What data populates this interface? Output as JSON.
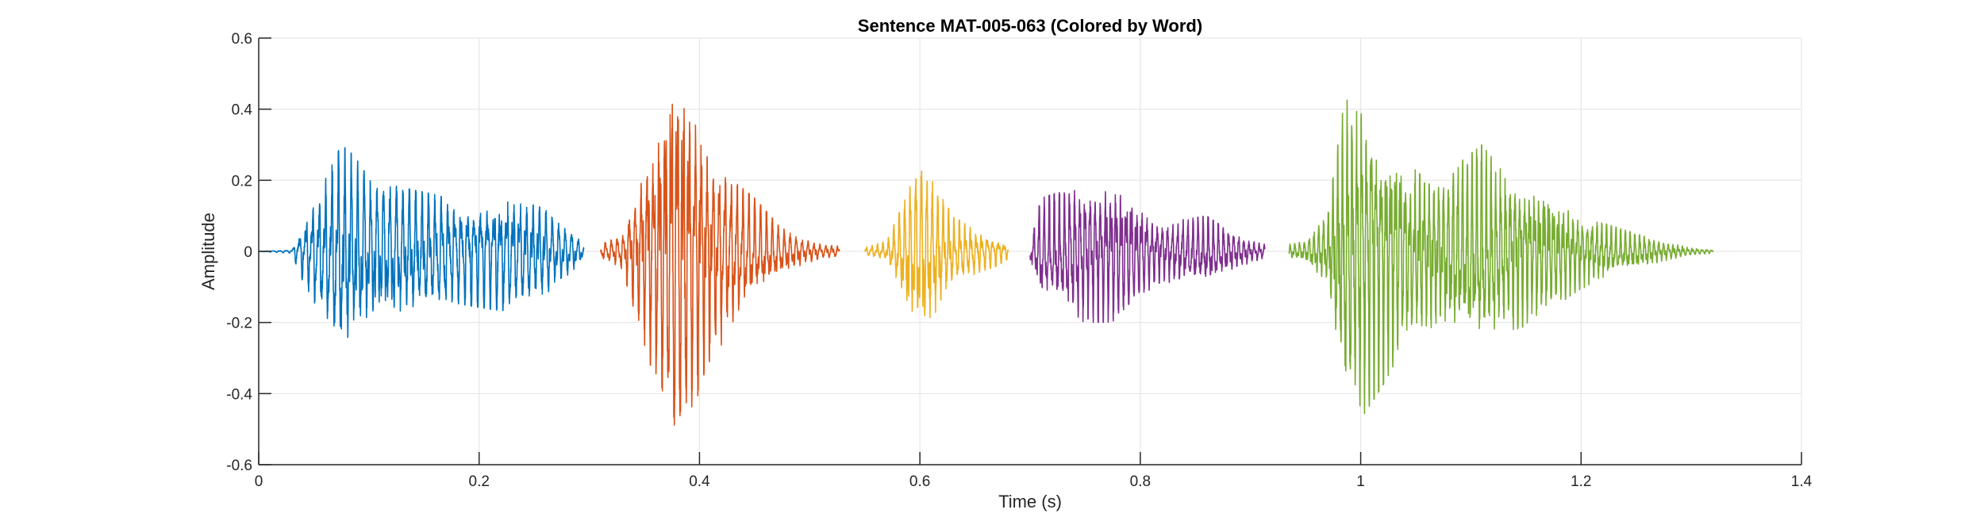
{
  "chart_data": {
    "type": "line",
    "title": "Sentence MAT-005-063 (Colored by Word)",
    "xlabel": "Time (s)",
    "ylabel": "Amplitude",
    "xlim": [
      0,
      1.4
    ],
    "ylim": [
      -0.6,
      0.6
    ],
    "x_ticks": [
      0,
      0.2,
      0.4,
      0.6,
      0.8,
      1,
      1.2,
      1.4
    ],
    "x_tick_labels": [
      "0",
      "0.2",
      "0.4",
      "0.6",
      "0.8",
      "1",
      "1.2",
      "1.4"
    ],
    "y_ticks": [
      0.6,
      0.4,
      0.2,
      0,
      -0.2,
      -0.4,
      -0.6
    ],
    "y_tick_labels": [
      "0.6",
      "0.4",
      "0.2",
      "0",
      "-0.2",
      "-0.4",
      "-0.6"
    ],
    "grid": true,
    "legend": "none",
    "segments": [
      {
        "color": "#0072BD",
        "start": 0.0,
        "end": 0.295,
        "envelope": [
          [
            0.0,
            0.0
          ],
          [
            0.03,
            0.005
          ],
          [
            0.04,
            0.08
          ],
          [
            0.06,
            0.2
          ],
          [
            0.075,
            0.3
          ],
          [
            0.09,
            0.26
          ],
          [
            0.1,
            0.2
          ],
          [
            0.13,
            0.18
          ],
          [
            0.16,
            0.16
          ],
          [
            0.18,
            0.14
          ],
          [
            0.2,
            0.15
          ],
          [
            0.22,
            0.16
          ],
          [
            0.24,
            0.14
          ],
          [
            0.26,
            0.12
          ],
          [
            0.28,
            0.07
          ],
          [
            0.295,
            0.02
          ]
        ]
      },
      {
        "color": "#D95319",
        "start": 0.31,
        "end": 0.527,
        "envelope": [
          [
            0.31,
            0.02
          ],
          [
            0.33,
            0.05
          ],
          [
            0.345,
            0.2
          ],
          [
            0.36,
            0.35
          ],
          [
            0.37,
            0.45
          ],
          [
            0.38,
            0.57
          ],
          [
            0.39,
            0.45
          ],
          [
            0.41,
            0.3
          ],
          [
            0.43,
            0.2
          ],
          [
            0.45,
            0.15
          ],
          [
            0.47,
            0.08
          ],
          [
            0.49,
            0.04
          ],
          [
            0.51,
            0.02
          ],
          [
            0.527,
            0.015
          ]
        ]
      },
      {
        "color": "#EDB120",
        "start": 0.55,
        "end": 0.68,
        "envelope": [
          [
            0.55,
            0.01
          ],
          [
            0.57,
            0.03
          ],
          [
            0.58,
            0.1
          ],
          [
            0.6,
            0.25
          ],
          [
            0.615,
            0.18
          ],
          [
            0.63,
            0.1
          ],
          [
            0.65,
            0.06
          ],
          [
            0.67,
            0.04
          ],
          [
            0.68,
            0.02
          ]
        ]
      },
      {
        "color": "#7E2F8E",
        "start": 0.7,
        "end": 0.913,
        "envelope": [
          [
            0.7,
            0.03
          ],
          [
            0.71,
            0.15
          ],
          [
            0.73,
            0.17
          ],
          [
            0.75,
            0.19
          ],
          [
            0.77,
            0.19
          ],
          [
            0.785,
            0.18
          ],
          [
            0.8,
            0.12
          ],
          [
            0.82,
            0.08
          ],
          [
            0.84,
            0.09
          ],
          [
            0.86,
            0.1
          ],
          [
            0.88,
            0.06
          ],
          [
            0.9,
            0.03
          ],
          [
            0.913,
            0.02
          ]
        ]
      },
      {
        "color": "#77AC30",
        "start": 0.935,
        "end": 1.32,
        "envelope": [
          [
            0.935,
            0.02
          ],
          [
            0.95,
            0.03
          ],
          [
            0.97,
            0.1
          ],
          [
            0.985,
            0.42
          ],
          [
            1.0,
            0.45
          ],
          [
            1.02,
            0.36
          ],
          [
            1.04,
            0.25
          ],
          [
            1.07,
            0.2
          ],
          [
            1.09,
            0.25
          ],
          [
            1.11,
            0.3
          ],
          [
            1.13,
            0.22
          ],
          [
            1.15,
            0.2
          ],
          [
            1.18,
            0.14
          ],
          [
            1.2,
            0.1
          ],
          [
            1.24,
            0.06
          ],
          [
            1.27,
            0.03
          ],
          [
            1.3,
            0.01
          ],
          [
            1.32,
            0.005
          ]
        ]
      }
    ]
  }
}
